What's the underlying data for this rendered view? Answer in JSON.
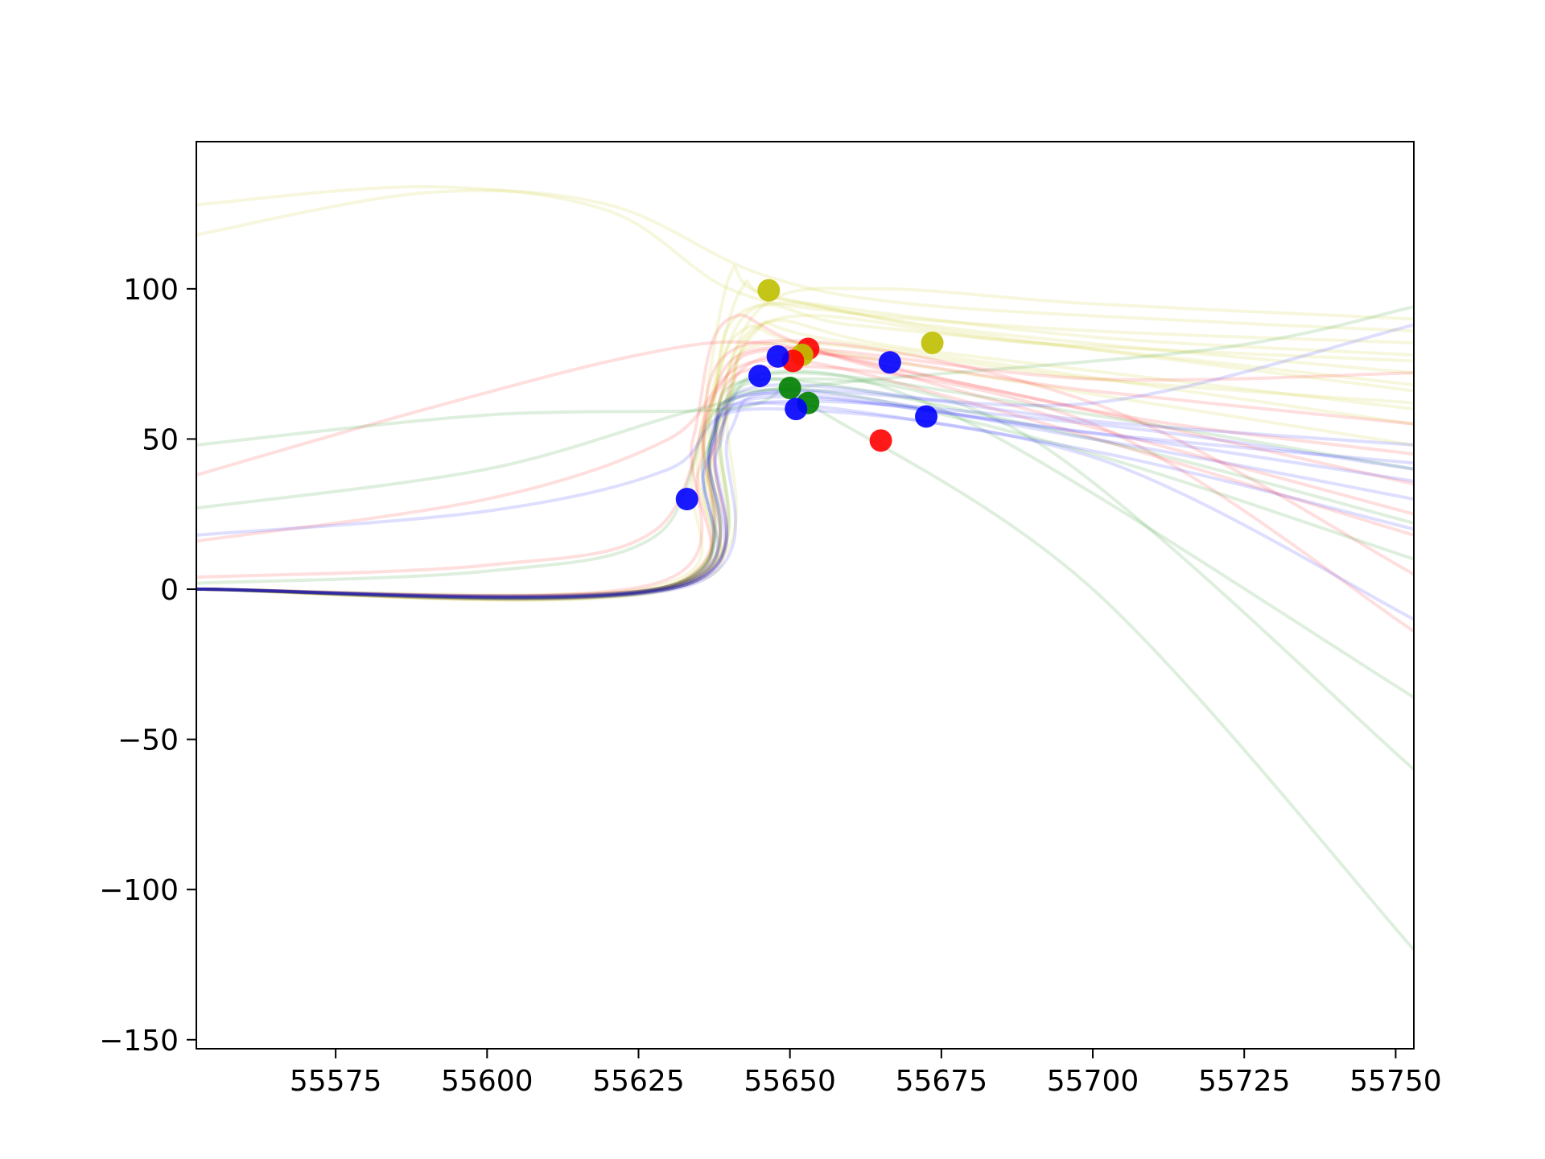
{
  "chart_data": {
    "type": "line",
    "title": "",
    "xlabel": "",
    "ylabel": "",
    "xlim": [
      55552,
      55753
    ],
    "ylim": [
      -153,
      149
    ],
    "xticks": [
      55575,
      55600,
      55625,
      55650,
      55675,
      55700,
      55725,
      55750
    ],
    "yticks": [
      -150,
      -100,
      -50,
      0,
      50,
      100
    ],
    "xtick_labels": [
      "55575",
      "55600",
      "55625",
      "55650",
      "55675",
      "55700",
      "55725",
      "55750"
    ],
    "ytick_labels": [
      "−150",
      "−100",
      "−50",
      "0",
      "50",
      "100"
    ],
    "grid": false,
    "legend": "none",
    "band_colors": {
      "r": "#ff0000",
      "g": "#008000",
      "b": "#0000ff",
      "y": "#bfbf00"
    },
    "series": [
      {
        "band": "y",
        "points": [
          [
            55552,
            128
          ],
          [
            55590,
            134
          ],
          [
            55620,
            126
          ],
          [
            55640,
            100
          ],
          [
            55660,
            92
          ],
          [
            55700,
            86
          ],
          [
            55753,
            82
          ]
        ]
      },
      {
        "band": "y",
        "points": [
          [
            55552,
            118
          ],
          [
            55590,
            132
          ],
          [
            55620,
            128
          ],
          [
            55645,
            105
          ],
          [
            55670,
            95
          ],
          [
            55720,
            89
          ],
          [
            55753,
            86
          ]
        ]
      },
      {
        "band": "y",
        "points": [
          [
            55552,
            0
          ],
          [
            55628,
            1
          ],
          [
            55634,
            40
          ],
          [
            55640,
            104
          ],
          [
            55646,
            98
          ],
          [
            55680,
            86
          ],
          [
            55753,
            72
          ]
        ]
      },
      {
        "band": "y",
        "points": [
          [
            55552,
            0
          ],
          [
            55630,
            1
          ],
          [
            55636,
            55
          ],
          [
            55642,
            100
          ],
          [
            55650,
            96
          ],
          [
            55700,
            84
          ],
          [
            55753,
            78
          ]
        ]
      },
      {
        "band": "y",
        "points": [
          [
            55552,
            0
          ],
          [
            55630,
            1
          ],
          [
            55635,
            45
          ],
          [
            55643,
            92
          ],
          [
            55660,
            88
          ],
          [
            55700,
            80
          ],
          [
            55753,
            68
          ]
        ]
      },
      {
        "band": "y",
        "points": [
          [
            55552,
            0
          ],
          [
            55631,
            1
          ],
          [
            55637,
            50
          ],
          [
            55645,
            88
          ],
          [
            55670,
            80
          ],
          [
            55753,
            60
          ]
        ]
      },
      {
        "band": "y",
        "points": [
          [
            55552,
            0
          ],
          [
            55632,
            1
          ],
          [
            55638,
            60
          ],
          [
            55646,
            95
          ],
          [
            55665,
            100
          ],
          [
            55700,
            95
          ],
          [
            55753,
            90
          ]
        ]
      },
      {
        "band": "y",
        "points": [
          [
            55552,
            0
          ],
          [
            55632,
            1
          ],
          [
            55636,
            35
          ],
          [
            55644,
            85
          ],
          [
            55660,
            82
          ],
          [
            55753,
            55
          ]
        ]
      },
      {
        "band": "y",
        "points": [
          [
            55552,
            0
          ],
          [
            55632,
            2
          ],
          [
            55639,
            55
          ],
          [
            55648,
            90
          ],
          [
            55690,
            82
          ],
          [
            55753,
            76
          ]
        ]
      },
      {
        "band": "y",
        "points": [
          [
            55552,
            0
          ],
          [
            55633,
            2
          ],
          [
            55640,
            62
          ],
          [
            55648,
            82
          ],
          [
            55700,
            70
          ],
          [
            55753,
            62
          ]
        ]
      },
      {
        "band": "y",
        "points": [
          [
            55552,
            0
          ],
          [
            55630,
            1
          ],
          [
            55636,
            50
          ],
          [
            55642,
            86
          ],
          [
            55660,
            78
          ],
          [
            55753,
            48
          ]
        ]
      },
      {
        "band": "y",
        "points": [
          [
            55552,
            0
          ],
          [
            55631,
            1
          ],
          [
            55637,
            58
          ],
          [
            55644,
            94
          ],
          [
            55680,
            85
          ],
          [
            55753,
            66
          ]
        ]
      },
      {
        "band": "r",
        "points": [
          [
            55552,
            38
          ],
          [
            55590,
            60
          ],
          [
            55625,
            78
          ],
          [
            55645,
            82
          ],
          [
            55670,
            72
          ],
          [
            55710,
            56
          ],
          [
            55753,
            45
          ]
        ]
      },
      {
        "band": "r",
        "points": [
          [
            55552,
            16
          ],
          [
            55600,
            30
          ],
          [
            55630,
            50
          ],
          [
            55645,
            76
          ],
          [
            55680,
            62
          ],
          [
            55753,
            18
          ]
        ]
      },
      {
        "band": "r",
        "points": [
          [
            55552,
            0
          ],
          [
            55628,
            2
          ],
          [
            55634,
            50
          ],
          [
            55640,
            90
          ],
          [
            55660,
            76
          ],
          [
            55753,
            25
          ]
        ]
      },
      {
        "band": "r",
        "points": [
          [
            55552,
            0
          ],
          [
            55630,
            1
          ],
          [
            55636,
            55
          ],
          [
            55645,
            80
          ],
          [
            55680,
            68
          ],
          [
            55753,
            35
          ]
        ]
      },
      {
        "band": "r",
        "points": [
          [
            55552,
            0
          ],
          [
            55631,
            1
          ],
          [
            55637,
            45
          ],
          [
            55646,
            74
          ],
          [
            55700,
            55
          ],
          [
            55753,
            -14
          ]
        ]
      },
      {
        "band": "r",
        "points": [
          [
            55552,
            0
          ],
          [
            55630,
            1
          ],
          [
            55635,
            40
          ],
          [
            55644,
            82
          ],
          [
            55700,
            62
          ],
          [
            55753,
            5
          ]
        ]
      },
      {
        "band": "r",
        "points": [
          [
            55552,
            0
          ],
          [
            55632,
            1
          ],
          [
            55638,
            48
          ],
          [
            55648,
            78
          ],
          [
            55700,
            66
          ],
          [
            55753,
            55
          ]
        ]
      },
      {
        "band": "r",
        "points": [
          [
            55552,
            4
          ],
          [
            55600,
            8
          ],
          [
            55628,
            20
          ],
          [
            55638,
            66
          ],
          [
            55650,
            80
          ],
          [
            55700,
            70
          ],
          [
            55753,
            72
          ]
        ]
      },
      {
        "band": "g",
        "points": [
          [
            55552,
            48
          ],
          [
            55600,
            58
          ],
          [
            55640,
            60
          ],
          [
            55650,
            68
          ],
          [
            55653,
            62
          ],
          [
            55700,
            0
          ],
          [
            55753,
            -120
          ]
        ]
      },
      {
        "band": "g",
        "points": [
          [
            55552,
            27
          ],
          [
            55600,
            40
          ],
          [
            55635,
            60
          ],
          [
            55655,
            66
          ],
          [
            55700,
            45
          ],
          [
            55753,
            10
          ]
        ]
      },
      {
        "band": "g",
        "points": [
          [
            55552,
            0
          ],
          [
            55630,
            1
          ],
          [
            55636,
            45
          ],
          [
            55646,
            72
          ],
          [
            55680,
            55
          ],
          [
            55753,
            -36
          ]
        ]
      },
      {
        "band": "g",
        "points": [
          [
            55552,
            0
          ],
          [
            55630,
            1
          ],
          [
            55637,
            50
          ],
          [
            55648,
            70
          ],
          [
            55690,
            50
          ],
          [
            55753,
            -60
          ]
        ]
      },
      {
        "band": "g",
        "points": [
          [
            55552,
            2
          ],
          [
            55600,
            6
          ],
          [
            55628,
            18
          ],
          [
            55638,
            60
          ],
          [
            55655,
            68
          ],
          [
            55720,
            80
          ],
          [
            55753,
            94
          ]
        ]
      },
      {
        "band": "g",
        "points": [
          [
            55552,
            0
          ],
          [
            55631,
            1
          ],
          [
            55637,
            48
          ],
          [
            55646,
            70
          ],
          [
            55700,
            50
          ],
          [
            55753,
            22
          ]
        ]
      },
      {
        "band": "g",
        "points": [
          [
            55552,
            0
          ],
          [
            55632,
            1
          ],
          [
            55639,
            55
          ],
          [
            55650,
            72
          ],
          [
            55700,
            58
          ],
          [
            55753,
            40
          ]
        ]
      },
      {
        "band": "b",
        "points": [
          [
            55552,
            0
          ],
          [
            55632,
            1
          ],
          [
            55637,
            45
          ],
          [
            55645,
            65
          ],
          [
            55700,
            52
          ],
          [
            55753,
            42
          ]
        ]
      },
      {
        "band": "b",
        "points": [
          [
            55552,
            0
          ],
          [
            55631,
            1
          ],
          [
            55636,
            40
          ],
          [
            55646,
            66
          ],
          [
            55700,
            50
          ],
          [
            55753,
            30
          ]
        ]
      },
      {
        "band": "b",
        "points": [
          [
            55552,
            0
          ],
          [
            55632,
            1
          ],
          [
            55638,
            50
          ],
          [
            55648,
            68
          ],
          [
            55700,
            56
          ],
          [
            55753,
            48
          ]
        ]
      },
      {
        "band": "b",
        "points": [
          [
            55552,
            18
          ],
          [
            55600,
            26
          ],
          [
            55630,
            40
          ],
          [
            55645,
            62
          ],
          [
            55700,
            55
          ],
          [
            55753,
            40
          ]
        ]
      },
      {
        "band": "b",
        "points": [
          [
            55552,
            0
          ],
          [
            55631,
            1
          ],
          [
            55637,
            48
          ],
          [
            55646,
            62
          ],
          [
            55700,
            46
          ],
          [
            55753,
            20
          ]
        ]
      },
      {
        "band": "b",
        "points": [
          [
            55552,
            0
          ],
          [
            55633,
            1
          ],
          [
            55640,
            52
          ],
          [
            55650,
            66
          ],
          [
            55700,
            62
          ],
          [
            55753,
            88
          ]
        ]
      },
      {
        "band": "b",
        "points": [
          [
            55552,
            0
          ],
          [
            55630,
            1
          ],
          [
            55636,
            42
          ],
          [
            55645,
            60
          ],
          [
            55700,
            44
          ],
          [
            55753,
            -10
          ]
        ]
      },
      {
        "band": "b",
        "points": [
          [
            55552,
            0
          ],
          [
            55632,
            1
          ],
          [
            55638,
            46
          ],
          [
            55647,
            64
          ],
          [
            55700,
            52
          ],
          [
            55753,
            36
          ]
        ]
      }
    ],
    "points": [
      {
        "band": "y",
        "x": 55646.5,
        "y": 99.5
      },
      {
        "band": "y",
        "x": 55673.5,
        "y": 82
      },
      {
        "band": "r",
        "x": 55653,
        "y": 80
      },
      {
        "band": "y",
        "x": 55652,
        "y": 78
      },
      {
        "band": "r",
        "x": 55650.5,
        "y": 76
      },
      {
        "band": "b",
        "x": 55648,
        "y": 77.5
      },
      {
        "band": "b",
        "x": 55645,
        "y": 71
      },
      {
        "band": "b",
        "x": 55666.5,
        "y": 75.5
      },
      {
        "band": "g",
        "x": 55650,
        "y": 67
      },
      {
        "band": "g",
        "x": 55653,
        "y": 62
      },
      {
        "band": "b",
        "x": 55651,
        "y": 60
      },
      {
        "band": "b",
        "x": 55672.5,
        "y": 57.5
      },
      {
        "band": "r",
        "x": 55665,
        "y": 49.5
      },
      {
        "band": "b",
        "x": 55633,
        "y": 30
      }
    ]
  }
}
